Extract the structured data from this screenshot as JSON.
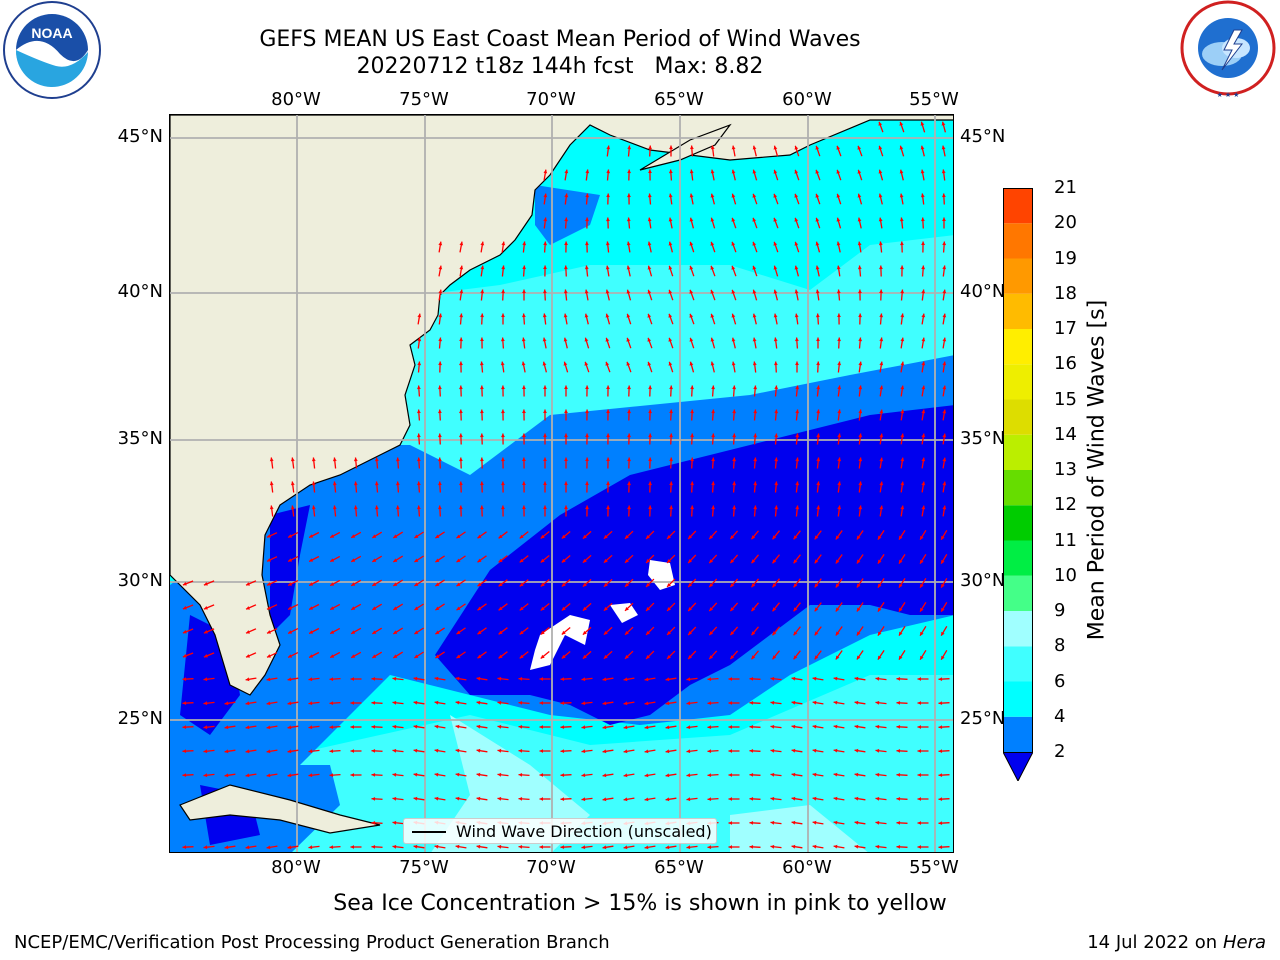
{
  "header": {
    "title_line1": "GEFS MEAN US East Coast Mean Period of Wind Waves",
    "title_date_run": "20220712 t18z 144h fcst",
    "title_max": "Max: 8.82"
  },
  "logos": {
    "left_name": "NOAA",
    "left_ring_text": "NATIONAL OCEANIC AND ATMOSPHERIC ADMINISTRATION · U.S. DEPARTMENT OF COMMERCE",
    "right_ring_text": "NATIONAL WEATHER SERVICE"
  },
  "map": {
    "lon_labels": [
      "80°W",
      "75°W",
      "70°W",
      "65°W",
      "60°W",
      "55°W"
    ],
    "lat_labels": [
      "45°N",
      "40°N",
      "35°N",
      "30°N",
      "25°N"
    ],
    "extent": {
      "lon": [
        -85,
        -54
      ],
      "lat": [
        20.5,
        46
      ]
    },
    "land_color": "#eeeedc",
    "vector_color": "#ff0000",
    "grid_color": "#b0b0b0"
  },
  "legend": {
    "label": "Wind Wave Direction (unscaled)"
  },
  "colorbar": {
    "title": "Mean Period of Wind Waves [s]",
    "ticks": [
      "21",
      "20",
      "19",
      "18",
      "17",
      "16",
      "15",
      "14",
      "13",
      "12",
      "11",
      "10",
      "9",
      "8",
      "6",
      "4",
      "2"
    ],
    "colors": [
      "#0000ee",
      "#0080ff",
      "#00ffff",
      "#40ffff",
      "#a0ffff",
      "#44ff88",
      "#00ee44",
      "#00cc00",
      "#66dd00",
      "#bbee00",
      "#dddd00",
      "#eeee00",
      "#ffee00",
      "#ffbb00",
      "#ff9900",
      "#ff7700",
      "#ff4400",
      "#ff0000"
    ]
  },
  "footer": {
    "subtitle": "Sea Ice Concentration > 15% is shown in pink to yellow",
    "left": "NCEP/EMC/Verification Post Processing Product Generation Branch",
    "right_date": "14 Jul 2022 on",
    "right_machine": "Hera"
  }
}
